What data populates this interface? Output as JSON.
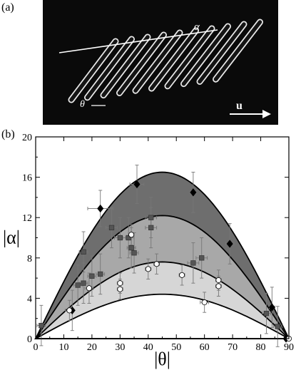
{
  "panel_a": {
    "label": "(a)",
    "alpha_symbol": "α",
    "theta_symbol": "θ",
    "u_symbol": "u"
  },
  "panel_b": {
    "label": "(b)"
  },
  "chart_data": {
    "type": "scatter",
    "xlabel": "|θ|",
    "ylabel": "|α|",
    "xlim": [
      0,
      90
    ],
    "ylim": [
      0,
      20
    ],
    "xticks": [
      0,
      10,
      20,
      30,
      40,
      50,
      60,
      70,
      80,
      90
    ],
    "yticks": [
      0,
      4,
      8,
      12,
      16,
      20
    ],
    "bands": [
      {
        "peak": 16.5,
        "fill": "#6e6e6e"
      },
      {
        "peak": 12.2,
        "fill": "#a8a8a8"
      },
      {
        "peak": 7.6,
        "fill": "#d6d6d6"
      },
      {
        "peak": 4.4,
        "fill": "#ffffff"
      }
    ],
    "series": [
      {
        "marker": "diamond",
        "color": "#000000",
        "points": [
          {
            "x": 13,
            "y": 2.8,
            "ex": 0,
            "ey": 2.0
          },
          {
            "x": 23,
            "y": 12.9,
            "ex": 4.5,
            "ey": 1.8
          },
          {
            "x": 36,
            "y": 15.3,
            "ex": 2.5,
            "ey": 1.9
          },
          {
            "x": 56,
            "y": 14.5,
            "ex": 1.0,
            "ey": 2.0
          },
          {
            "x": 69,
            "y": 9.4,
            "ex": 1.5,
            "ey": 2.0
          },
          {
            "x": 84,
            "y": 3.1,
            "ex": 1.0,
            "ey": 2.0
          },
          {
            "x": 89,
            "y": 0.0,
            "ex": 0,
            "ey": 0
          }
        ]
      },
      {
        "marker": "square",
        "color": "#555555",
        "points": [
          {
            "x": 2,
            "y": 1.3,
            "ex": 1.5,
            "ey": 2.0
          },
          {
            "x": 15,
            "y": 5.3,
            "ex": 1.5,
            "ey": 2.0
          },
          {
            "x": 17,
            "y": 5.5,
            "ex": 1.5,
            "ey": 2.0
          },
          {
            "x": 17,
            "y": 8.6,
            "ex": 1.5,
            "ey": 2.0
          },
          {
            "x": 20,
            "y": 6.2,
            "ex": 1.5,
            "ey": 2.0
          },
          {
            "x": 23,
            "y": 6.4,
            "ex": 1.5,
            "ey": 2.0
          },
          {
            "x": 27,
            "y": 11.0,
            "ex": 2.0,
            "ey": 2.0
          },
          {
            "x": 30,
            "y": 10.0,
            "ex": 2.0,
            "ey": 2.0
          },
          {
            "x": 33,
            "y": 10.0,
            "ex": 2.0,
            "ey": 2.0
          },
          {
            "x": 34,
            "y": 9.0,
            "ex": 1.5,
            "ey": 2.0
          },
          {
            "x": 35,
            "y": 8.5,
            "ex": 1.5,
            "ey": 2.0
          },
          {
            "x": 41,
            "y": 12.0,
            "ex": 2.0,
            "ey": 2.0
          },
          {
            "x": 41,
            "y": 11.0,
            "ex": 2.0,
            "ey": 2.0
          },
          {
            "x": 56,
            "y": 7.5,
            "ex": 2.0,
            "ey": 2.0
          },
          {
            "x": 59,
            "y": 8.0,
            "ex": 2.0,
            "ey": 2.0
          },
          {
            "x": 82,
            "y": 2.5,
            "ex": 1.5,
            "ey": 2.0
          },
          {
            "x": 86,
            "y": 1.2,
            "ex": 1.5,
            "ey": 2.0
          }
        ]
      },
      {
        "marker": "circle",
        "color": "#ffffff",
        "points": [
          {
            "x": 12,
            "y": 2.8,
            "ex": 1.5,
            "ey": 1.0
          },
          {
            "x": 19,
            "y": 5.0,
            "ex": 1.5,
            "ey": 1.5
          },
          {
            "x": 30,
            "y": 5.5,
            "ex": 1.0,
            "ey": 1.0
          },
          {
            "x": 30,
            "y": 4.9,
            "ex": 1.0,
            "ey": 1.0
          },
          {
            "x": 34,
            "y": 10.3,
            "ex": 1.0,
            "ey": 1.0
          },
          {
            "x": 40,
            "y": 6.9,
            "ex": 1.0,
            "ey": 1.0
          },
          {
            "x": 43,
            "y": 7.4,
            "ex": 1.0,
            "ey": 1.0
          },
          {
            "x": 52,
            "y": 6.3,
            "ex": 1.0,
            "ey": 1.0
          },
          {
            "x": 60,
            "y": 3.6,
            "ex": 1.5,
            "ey": 1.0
          },
          {
            "x": 65,
            "y": 5.8,
            "ex": 1.0,
            "ey": 1.0
          },
          {
            "x": 65,
            "y": 5.2,
            "ex": 1.0,
            "ey": 1.0
          },
          {
            "x": 90,
            "y": 0.0,
            "ex": 0,
            "ey": 0
          }
        ]
      }
    ]
  }
}
